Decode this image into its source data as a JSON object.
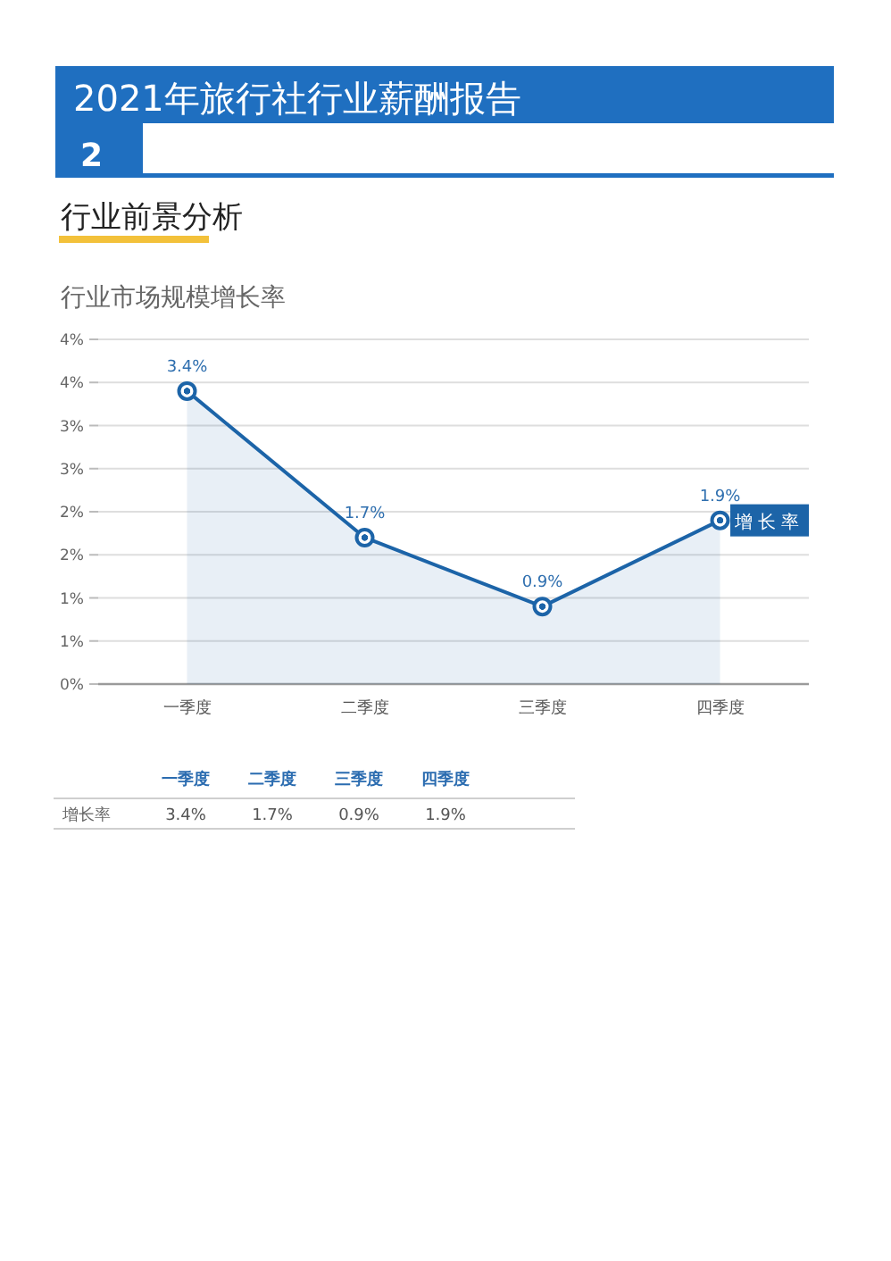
{
  "chart_data": {
    "type": "area",
    "title": "行业市场规模增长率",
    "annotations": [
      "2021年旅行社行业薪酬报告",
      "2",
      "行业前景分析"
    ],
    "categories": [
      "一季度",
      "二季度",
      "三季度",
      "四季度"
    ],
    "series": [
      {
        "name": "增长率",
        "color": "#1c64a8",
        "values": [
          3.4,
          1.7,
          0.9,
          1.9
        ],
        "value_labels": [
          "3.4%",
          "1.7%",
          "0.9%",
          "1.9%"
        ]
      }
    ],
    "ylim": [
      0,
      4
    ],
    "yticks": [
      {
        "value": 0,
        "label": "0%"
      },
      {
        "value": 0.5,
        "label": "1%"
      },
      {
        "value": 1,
        "label": "1%"
      },
      {
        "value": 1.5,
        "label": "2%"
      },
      {
        "value": 2,
        "label": "2%"
      },
      {
        "value": 2.5,
        "label": "3%"
      },
      {
        "value": 3,
        "label": "3%"
      },
      {
        "value": 3.5,
        "label": "4%"
      },
      {
        "value": 4,
        "label": "4%"
      }
    ],
    "grid": "y",
    "legend": "right",
    "marker": "circle",
    "line_style": "solid"
  }
}
